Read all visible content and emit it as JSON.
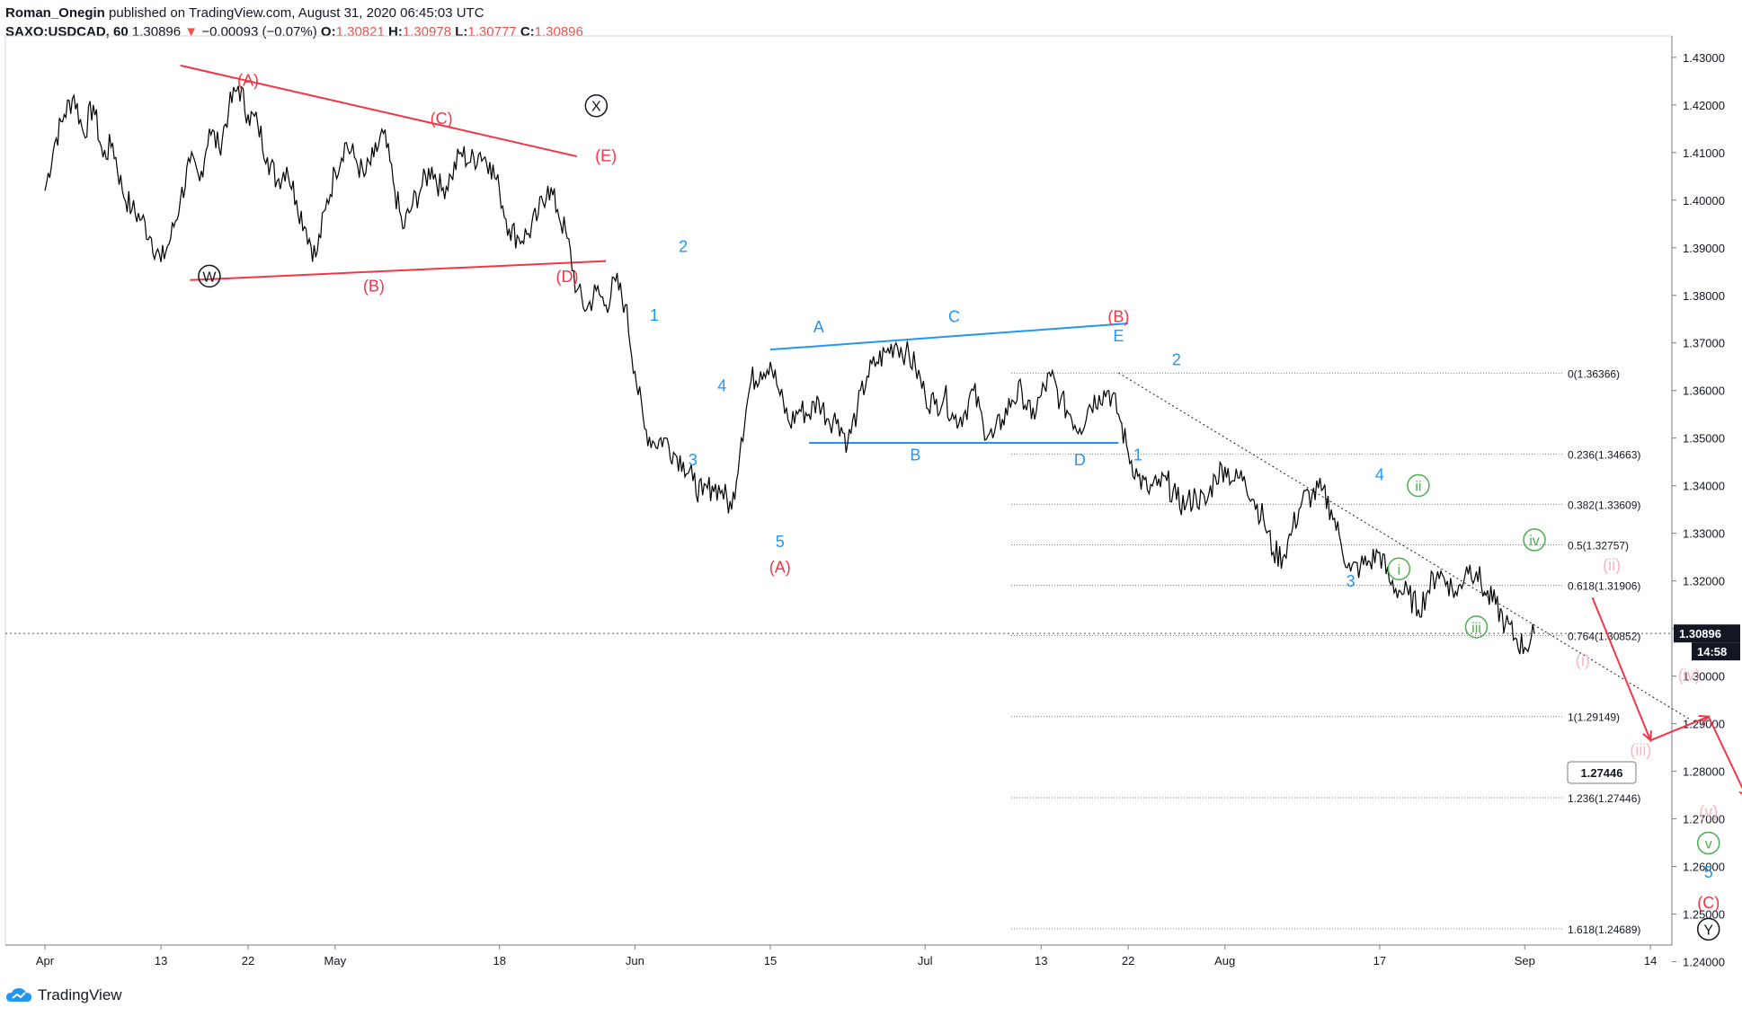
{
  "header": {
    "author": "Roman_Onegin",
    "published": "published on TradingView.com, August 31, 2020 06:45:03 UTC",
    "symbol": "SAXO:USDCAD, 60",
    "last": "1.30896",
    "arrow": "▼",
    "change": "−0.00093 (−0.07%)",
    "o_label": "O:",
    "o_value": "1.30821",
    "h_label": "H:",
    "h_value": "1.30978",
    "l_label": "L:",
    "l_value": "1.30777",
    "c_label": "C:",
    "c_value": "1.30896"
  },
  "footer": {
    "brand": "TradingView"
  },
  "colors": {
    "red": "#f23645",
    "blue": "#2196f3",
    "green": "#4caf50",
    "pink": "#f8b6c0",
    "black": "#131722",
    "grid": "#d1d4dc"
  },
  "chart_data": {
    "type": "line",
    "title": "",
    "xlabel": "",
    "ylabel": "",
    "ylim": [
      1.2435,
      1.4345
    ],
    "y_ticks": [
      "1.43000",
      "1.42000",
      "1.41000",
      "1.40000",
      "1.39000",
      "1.38000",
      "1.37000",
      "1.36000",
      "1.35000",
      "1.34000",
      "1.33000",
      "1.32000",
      "1.31000",
      "1.30000",
      "1.29000",
      "1.28000",
      "1.27000",
      "1.26000",
      "1.25000",
      "1.24000"
    ],
    "x_ticks": [
      {
        "label": "Apr",
        "t": 0
      },
      {
        "label": "13",
        "t": 12
      },
      {
        "label": "22",
        "t": 21
      },
      {
        "label": "May",
        "t": 30
      },
      {
        "label": "18",
        "t": 47
      },
      {
        "label": "Jun",
        "t": 61
      },
      {
        "label": "15",
        "t": 75
      },
      {
        "label": "Jul",
        "t": 91
      },
      {
        "label": "13",
        "t": 103
      },
      {
        "label": "22",
        "t": 112
      },
      {
        "label": "Aug",
        "t": 122
      },
      {
        "label": "17",
        "t": 138
      },
      {
        "label": "Sep",
        "t": 153
      },
      {
        "label": "14",
        "t": 166
      }
    ],
    "x_unit": "days since Apr 1, 2020",
    "last_price": {
      "value": 1.30896,
      "label": "1.30896",
      "countdown": "14:58"
    },
    "series": [
      {
        "points": [
          [
            0,
            1.402
          ],
          [
            1,
            1.412
          ],
          [
            2,
            1.418
          ],
          [
            3,
            1.422
          ],
          [
            4,
            1.414
          ],
          [
            5,
            1.42
          ],
          [
            6,
            1.409
          ],
          [
            7,
            1.412
          ],
          [
            8,
            1.402
          ],
          [
            9,
            1.398
          ],
          [
            10,
            1.396
          ],
          [
            11,
            1.392
          ],
          [
            12,
            1.387
          ],
          [
            13,
            1.392
          ],
          [
            14,
            1.4
          ],
          [
            15,
            1.408
          ],
          [
            16,
            1.404
          ],
          [
            17,
            1.415
          ],
          [
            18,
            1.411
          ],
          [
            19,
            1.419
          ],
          [
            20,
            1.424
          ],
          [
            21,
            1.418
          ],
          [
            22,
            1.416
          ],
          [
            23,
            1.409
          ],
          [
            24,
            1.404
          ],
          [
            25,
            1.407
          ],
          [
            26,
            1.4
          ],
          [
            27,
            1.394
          ],
          [
            28,
            1.388
          ],
          [
            29,
            1.398
          ],
          [
            30,
            1.406
          ],
          [
            31,
            1.412
          ],
          [
            32,
            1.409
          ],
          [
            33,
            1.405
          ],
          [
            34,
            1.409
          ],
          [
            35,
            1.414
          ],
          [
            36,
            1.404
          ],
          [
            37,
            1.394
          ],
          [
            38,
            1.399
          ],
          [
            39,
            1.403
          ],
          [
            40,
            1.407
          ],
          [
            41,
            1.402
          ],
          [
            42,
            1.405
          ],
          [
            43,
            1.41
          ],
          [
            44,
            1.408
          ],
          [
            45,
            1.41
          ],
          [
            46,
            1.408
          ],
          [
            47,
            1.402
          ],
          [
            48,
            1.394
          ],
          [
            49,
            1.392
          ],
          [
            50,
            1.393
          ],
          [
            51,
            1.397
          ],
          [
            52,
            1.403
          ],
          [
            53,
            1.398
          ],
          [
            54,
            1.392
          ],
          [
            55,
            1.381
          ],
          [
            56,
            1.377
          ],
          [
            57,
            1.381
          ],
          [
            58,
            1.378
          ],
          [
            59,
            1.383
          ],
          [
            60,
            1.378
          ],
          [
            61,
            1.364
          ],
          [
            62,
            1.352
          ],
          [
            63,
            1.349
          ],
          [
            64,
            1.35
          ],
          [
            65,
            1.347
          ],
          [
            66,
            1.345
          ],
          [
            67,
            1.341
          ],
          [
            68,
            1.338
          ],
          [
            69,
            1.34
          ],
          [
            70,
            1.339
          ],
          [
            71,
            1.335
          ],
          [
            72,
            1.35
          ],
          [
            73,
            1.362
          ],
          [
            74,
            1.364
          ],
          [
            75,
            1.366
          ],
          [
            76,
            1.359
          ],
          [
            77,
            1.353
          ],
          [
            78,
            1.356
          ],
          [
            79,
            1.355
          ],
          [
            80,
            1.358
          ],
          [
            81,
            1.354
          ],
          [
            82,
            1.354
          ],
          [
            83,
            1.349
          ],
          [
            84,
            1.356
          ],
          [
            85,
            1.363
          ],
          [
            86,
            1.366
          ],
          [
            87,
            1.368
          ],
          [
            88,
            1.37
          ],
          [
            89,
            1.368
          ],
          [
            90,
            1.365
          ],
          [
            91,
            1.359
          ],
          [
            92,
            1.357
          ],
          [
            93,
            1.359
          ],
          [
            94,
            1.354
          ],
          [
            95,
            1.355
          ],
          [
            96,
            1.36
          ],
          [
            97,
            1.353
          ],
          [
            98,
            1.35
          ],
          [
            99,
            1.354
          ],
          [
            100,
            1.358
          ],
          [
            101,
            1.36
          ],
          [
            102,
            1.354
          ],
          [
            103,
            1.359
          ],
          [
            104,
            1.363
          ],
          [
            105,
            1.358
          ],
          [
            106,
            1.355
          ],
          [
            107,
            1.352
          ],
          [
            108,
            1.357
          ],
          [
            109,
            1.359
          ],
          [
            110,
            1.36
          ],
          [
            111,
            1.355
          ],
          [
            112,
            1.347
          ],
          [
            113,
            1.342
          ],
          [
            114,
            1.339
          ],
          [
            115,
            1.34
          ],
          [
            116,
            1.341
          ],
          [
            117,
            1.337
          ],
          [
            118,
            1.336
          ],
          [
            119,
            1.338
          ],
          [
            120,
            1.336
          ],
          [
            121,
            1.342
          ],
          [
            122,
            1.344
          ],
          [
            123,
            1.341
          ],
          [
            124,
            1.342
          ],
          [
            125,
            1.337
          ],
          [
            126,
            1.333
          ],
          [
            127,
            1.326
          ],
          [
            128,
            1.325
          ],
          [
            129,
            1.331
          ],
          [
            130,
            1.337
          ],
          [
            131,
            1.338
          ],
          [
            132,
            1.339
          ],
          [
            133,
            1.335
          ],
          [
            134,
            1.328
          ],
          [
            135,
            1.322
          ],
          [
            136,
            1.323
          ],
          [
            137,
            1.324
          ],
          [
            138,
            1.326
          ],
          [
            139,
            1.32
          ],
          [
            140,
            1.318
          ],
          [
            141,
            1.317
          ],
          [
            142,
            1.314
          ],
          [
            143,
            1.318
          ],
          [
            144,
            1.322
          ],
          [
            145,
            1.32
          ],
          [
            146,
            1.317
          ],
          [
            147,
            1.323
          ],
          [
            148,
            1.322
          ],
          [
            149,
            1.317
          ],
          [
            150,
            1.315
          ],
          [
            151,
            1.311
          ],
          [
            152,
            1.308
          ],
          [
            153,
            1.306
          ],
          [
            154,
            1.309
          ]
        ]
      }
    ],
    "trendlines": [
      {
        "color": "red",
        "from": [
          14,
          1.4283
        ],
        "to": [
          55,
          1.4092
        ]
      },
      {
        "color": "red",
        "from": [
          15,
          1.3832
        ],
        "to": [
          58,
          1.3872
        ]
      },
      {
        "color": "blue",
        "from": [
          75,
          1.3686
        ],
        "to": [
          112,
          1.3741
        ]
      },
      {
        "color": "blue",
        "from": [
          79,
          1.349
        ],
        "to": [
          111,
          1.349
        ]
      },
      {
        "color": "black",
        "style": "dotted",
        "from": [
          111,
          1.3637
        ],
        "to": [
          170,
          1.291
        ]
      }
    ],
    "projection": [
      [
        160,
        1.3165
      ],
      [
        166,
        1.2865
      ],
      [
        172,
        1.2915
      ],
      [
        176,
        1.2744
      ]
    ],
    "fib_levels": [
      {
        "label": "0(1.36366)",
        "value": 1.36366
      },
      {
        "label": "0.236(1.34663)",
        "value": 1.34663
      },
      {
        "label": "0.382(1.33609)",
        "value": 1.33609
      },
      {
        "label": "0.5(1.32757)",
        "value": 1.32757
      },
      {
        "label": "0.618(1.31906)",
        "value": 1.31906
      },
      {
        "label": "0.764(1.30852)",
        "value": 1.30852
      },
      {
        "label": "1(1.29149)",
        "value": 1.29149
      },
      {
        "label": "1.236(1.27446)",
        "value": 1.27446
      },
      {
        "label": "1.618(1.24689)",
        "value": 1.24689
      }
    ],
    "price_callout": {
      "label": "1.27446",
      "value": 1.27446
    },
    "annotations": [
      {
        "text": "(A)",
        "color": "red",
        "t": 21,
        "y": 1.424
      },
      {
        "text": "(C)",
        "color": "red",
        "t": 41,
        "y": 1.416
      },
      {
        "text": "(E)",
        "color": "red",
        "t": 58,
        "y": 1.4082
      },
      {
        "text": "(B)",
        "color": "red",
        "t": 34,
        "y": 1.3808
      },
      {
        "text": "(D)",
        "color": "red",
        "t": 54,
        "y": 1.3828
      },
      {
        "text": "W",
        "color": "black",
        "t": 17,
        "y": 1.3829,
        "circle": true
      },
      {
        "text": "X",
        "color": "black",
        "t": 57,
        "y": 1.4187,
        "circle": true
      },
      {
        "text": "2",
        "color": "blue",
        "t": 66,
        "y": 1.3891
      },
      {
        "text": "1",
        "color": "blue",
        "t": 63,
        "y": 1.3747
      },
      {
        "text": "4",
        "color": "blue",
        "t": 70,
        "y": 1.3599
      },
      {
        "text": "3",
        "color": "blue",
        "t": 67,
        "y": 1.3443
      },
      {
        "text": "5",
        "color": "blue",
        "t": 76,
        "y": 1.3271
      },
      {
        "text": "(A)",
        "color": "red",
        "t": 76,
        "y": 1.3217
      },
      {
        "text": "A",
        "color": "blue",
        "t": 80,
        "y": 1.3722
      },
      {
        "text": "C",
        "color": "blue",
        "t": 94,
        "y": 1.3744
      },
      {
        "text": "(B)",
        "color": "red",
        "t": 111,
        "y": 1.3744
      },
      {
        "text": "E",
        "color": "blue",
        "t": 111,
        "y": 1.3703
      },
      {
        "text": "B",
        "color": "blue",
        "t": 90,
        "y": 1.3453
      },
      {
        "text": "D",
        "color": "blue",
        "t": 107,
        "y": 1.3443
      },
      {
        "text": "2",
        "color": "blue",
        "t": 117,
        "y": 1.3653
      },
      {
        "text": "1",
        "color": "blue",
        "t": 113,
        "y": 1.3453
      },
      {
        "text": "4",
        "color": "blue",
        "t": 138,
        "y": 1.3412
      },
      {
        "text": "3",
        "color": "blue",
        "t": 135,
        "y": 1.3188
      },
      {
        "text": "ii",
        "color": "green",
        "t": 142,
        "y": 1.3389,
        "circle": true
      },
      {
        "text": "i",
        "color": "green",
        "t": 140,
        "y": 1.3214,
        "circle": true
      },
      {
        "text": "iv",
        "color": "green",
        "t": 154,
        "y": 1.3275,
        "circle": true
      },
      {
        "text": "iii",
        "color": "green",
        "t": 148,
        "y": 1.3092,
        "circle": true
      },
      {
        "text": "(ii)",
        "color": "pink",
        "t": 162,
        "y": 1.3222
      },
      {
        "text": "(i)",
        "color": "pink",
        "t": 159,
        "y": 1.3022
      },
      {
        "text": "(iv)",
        "color": "pink",
        "t": 170,
        "y": 1.2991
      },
      {
        "text": "(iii)",
        "color": "pink",
        "t": 165,
        "y": 1.2833
      },
      {
        "text": "(v)",
        "color": "pink",
        "t": 172,
        "y": 1.2704
      },
      {
        "text": "v",
        "color": "green",
        "t": 172,
        "y": 1.2638,
        "circle": true
      },
      {
        "text": "5",
        "color": "blue",
        "t": 172,
        "y": 1.2577
      },
      {
        "text": "(C)",
        "color": "red",
        "t": 172,
        "y": 1.2512
      },
      {
        "text": "Y",
        "color": "black",
        "t": 172,
        "y": 1.2457,
        "circle": true
      }
    ]
  }
}
